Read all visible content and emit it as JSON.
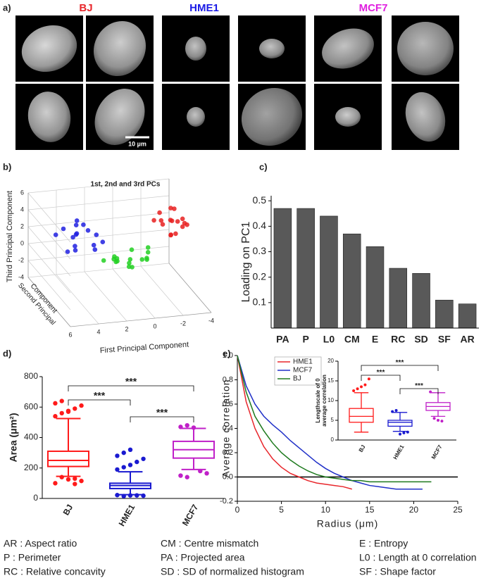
{
  "chart_data": [
    {
      "type": "image-grid",
      "panel": "a)",
      "labels": [
        "BJ",
        "HME1",
        "MCF7"
      ],
      "label_colors": [
        "#e8262b",
        "#1a1ae6",
        "#e020e0"
      ],
      "scale_bar": "10 µm"
    },
    {
      "type": "scatter3d",
      "panel": "b)",
      "title": "1st, 2nd and 3rd PCs",
      "xlabel": "First Principal Component",
      "ylabel": [
        "Second Principal",
        "Component"
      ],
      "zlabel": "Third Principal Component",
      "xlim": [
        -4,
        6
      ],
      "ylim": [
        -4,
        6
      ],
      "zlim": [
        -4,
        6
      ],
      "xticks": [
        6,
        4,
        2,
        0,
        -2,
        -4
      ],
      "zticks": [
        -4,
        -2,
        0,
        2,
        4,
        6
      ],
      "series": [
        {
          "color": "#2020e0",
          "x": [
            4.2,
            3.5,
            5.0,
            4.6,
            3.8,
            2.9,
            4.9,
            5.6,
            3.3,
            4.0,
            2.6,
            4.4,
            3.1,
            5.3,
            3.7,
            4.8
          ],
          "y": [
            0.5,
            -1.2,
            1.0,
            -0.4,
            1.8,
            0.2,
            -1.5,
            0.8,
            -0.8,
            1.3,
            -0.3,
            0.0,
            1.5,
            -1.0,
            0.6,
            -0.6
          ],
          "z": [
            4.1,
            3.6,
            4.5,
            3.2,
            4.8,
            3.9,
            3.4,
            4.0,
            2.8,
            4.6,
            3.3,
            4.3,
            3.7,
            3.0,
            5.0,
            4.4
          ]
        },
        {
          "color": "#e82020",
          "x": [
            -2.5,
            -3.0,
            -2.0,
            -1.6,
            -3.4,
            -2.8,
            -1.9,
            -2.3,
            -3.1,
            -1.4,
            -2.6,
            -2.1,
            -3.6,
            -1.8,
            -2.9,
            -2.4
          ],
          "y": [
            0.3,
            -1.0,
            1.2,
            -0.5,
            0.8,
            1.6,
            -1.4,
            0.0,
            -0.2,
            0.9,
            -0.7,
            1.9,
            0.4,
            -1.8,
            1.1,
            -0.9
          ],
          "z": [
            4.6,
            5.0,
            4.2,
            4.8,
            4.4,
            5.3,
            4.0,
            4.9,
            4.1,
            4.5,
            5.1,
            4.7,
            3.9,
            4.3,
            5.5,
            3.8
          ]
        },
        {
          "color": "#22d022",
          "x": [
            0.5,
            -0.3,
            1.2,
            0.0,
            1.8,
            -0.8,
            0.9,
            0.3,
            1.5,
            -0.5,
            2.2,
            0.7,
            -1.1,
            1.0,
            0.1,
            1.6
          ],
          "y": [
            0.2,
            -1.1,
            0.9,
            1.5,
            -0.4,
            0.6,
            -1.6,
            1.1,
            0.0,
            -0.7,
            0.8,
            -0.2,
            1.3,
            1.9,
            -1.3,
            0.4
          ],
          "z": [
            0.6,
            1.2,
            0.1,
            0.9,
            1.5,
            0.3,
            0.8,
            -0.4,
            1.0,
            1.8,
            0.4,
            0.0,
            1.1,
            -0.6,
            1.4,
            0.7
          ]
        }
      ]
    },
    {
      "type": "bar",
      "panel": "c)",
      "ylabel": "Loading on PC1",
      "categories": [
        "PA",
        "P",
        "L0",
        "CM",
        "E",
        "RC",
        "SD",
        "SF",
        "AR"
      ],
      "values": [
        0.47,
        0.47,
        0.44,
        0.37,
        0.32,
        0.235,
        0.215,
        0.11,
        0.095
      ],
      "color": "#595959",
      "ylim": [
        0,
        0.52
      ],
      "yticks": [
        0.1,
        0.2,
        0.3,
        0.4,
        0.5
      ]
    },
    {
      "type": "box",
      "panel": "d)",
      "ylabel": "Area (μm²)",
      "categories": [
        "BJ",
        "HME1",
        "MCF7"
      ],
      "colors": [
        "#ff1a1a",
        "#1a1ad0",
        "#c020c8"
      ],
      "boxes": [
        {
          "min": 145,
          "q1": 210,
          "median": 250,
          "q3": 310,
          "max": 525,
          "outliers": [
            540,
            560,
            575,
            590,
            610,
            625,
            640,
            570,
            130,
            115,
            100,
            140,
            125,
            95
          ]
        },
        {
          "min": 25,
          "q1": 65,
          "median": 85,
          "q3": 100,
          "max": 175,
          "outliers": [
            190,
            205,
            220,
            240,
            260,
            280,
            300,
            320,
            20,
            18,
            22,
            15,
            20
          ]
        },
        {
          "min": 190,
          "q1": 265,
          "median": 320,
          "q3": 375,
          "max": 460,
          "outliers": [
            470,
            480,
            465,
            180,
            165,
            150,
            140
          ]
        }
      ],
      "ylim": [
        0,
        800
      ],
      "yticks": [
        0,
        200,
        400,
        600,
        800
      ],
      "annotations": [
        {
          "text": "***",
          "pair": [
            0,
            1
          ]
        },
        {
          "text": "***",
          "pair": [
            0,
            2
          ]
        },
        {
          "text": "***",
          "pair": [
            1,
            2
          ]
        }
      ]
    },
    {
      "type": "line",
      "panel": "e)",
      "xlabel": "Radius (μm)",
      "ylabel": "Average correlation",
      "x": [
        0,
        1,
        2,
        3,
        4,
        5,
        6,
        7,
        8,
        9,
        10,
        11,
        12,
        13,
        14,
        15,
        16,
        17,
        18,
        19,
        20,
        21,
        22,
        23
      ],
      "series": [
        {
          "name": "HME1",
          "color": "#e8262b",
          "values": [
            1.0,
            0.62,
            0.4,
            0.25,
            0.15,
            0.08,
            0.03,
            0.0,
            -0.03,
            -0.05,
            -0.06,
            -0.07,
            -0.08,
            -0.1,
            null,
            null,
            null,
            null,
            null,
            null,
            null,
            null,
            null,
            null
          ]
        },
        {
          "name": "MCF7",
          "color": "#2030c8",
          "values": [
            1.0,
            0.75,
            0.6,
            0.5,
            0.43,
            0.37,
            0.3,
            0.24,
            0.18,
            0.12,
            0.07,
            0.03,
            0.0,
            -0.03,
            -0.05,
            -0.07,
            -0.08,
            -0.09,
            -0.1,
            -0.1,
            -0.1,
            -0.1,
            null,
            null
          ]
        },
        {
          "name": "BJ",
          "color": "#1e7a1e",
          "values": [
            1.0,
            0.7,
            0.5,
            0.38,
            0.28,
            0.2,
            0.14,
            0.09,
            0.05,
            0.02,
            0.0,
            -0.01,
            -0.02,
            -0.03,
            -0.03,
            -0.04,
            -0.04,
            -0.04,
            -0.04,
            -0.04,
            -0.04,
            -0.04,
            -0.04,
            null
          ]
        }
      ],
      "xlim": [
        0,
        25
      ],
      "xticks": [
        0,
        5,
        10,
        15,
        20,
        25
      ],
      "ylim": [
        -0.2,
        1.0
      ],
      "yticks": [
        -0.2,
        {
          "value": 0,
          "label": "0.0"
        },
        0.2,
        0.4,
        0.6,
        0.8,
        {
          "value": 1,
          "label": "1.0"
        }
      ]
    },
    {
      "type": "box",
      "ylabel": [
        "Lengthscale of 0",
        "average correlation"
      ],
      "categories": [
        "BJ",
        "HME1",
        "MCF7"
      ],
      "colors": [
        "#ff1a1a",
        "#1a1ad0",
        "#c020c8"
      ],
      "boxes": [
        {
          "min": 2,
          "q1": 4.5,
          "median": 6,
          "q3": 8,
          "max": 12,
          "outliers": [
            12.5,
            13,
            13.5,
            14,
            15.5
          ]
        },
        {
          "min": 2.2,
          "q1": 3.5,
          "median": 4.5,
          "q3": 5,
          "max": 7,
          "outliers": [
            7.2,
            7.5,
            1.5,
            1.8,
            2.0
          ]
        },
        {
          "min": 6,
          "q1": 7.5,
          "median": 8.5,
          "q3": 9.5,
          "max": 12,
          "outliers": [
            12.2,
            5.5,
            5.0,
            4.8
          ]
        }
      ],
      "ylim": [
        0,
        20
      ],
      "yticks": [
        0,
        5,
        10,
        15,
        20
      ],
      "annotations": [
        {
          "text": "***",
          "pair": [
            0,
            1
          ]
        },
        {
          "text": "***",
          "pair": [
            0,
            2
          ]
        },
        {
          "text": "***",
          "pair": [
            1,
            2
          ]
        }
      ]
    }
  ],
  "abbreviations": [
    "AR : Aspect ratio",
    "CM : Centre mismatch",
    "E : Entropy",
    "P : Perimeter",
    "PA : Projected area",
    "L0 : Length at 0 correlation",
    "RC : Relative concavity",
    "SD : SD of normalized histogram",
    "SF : Shape factor"
  ]
}
